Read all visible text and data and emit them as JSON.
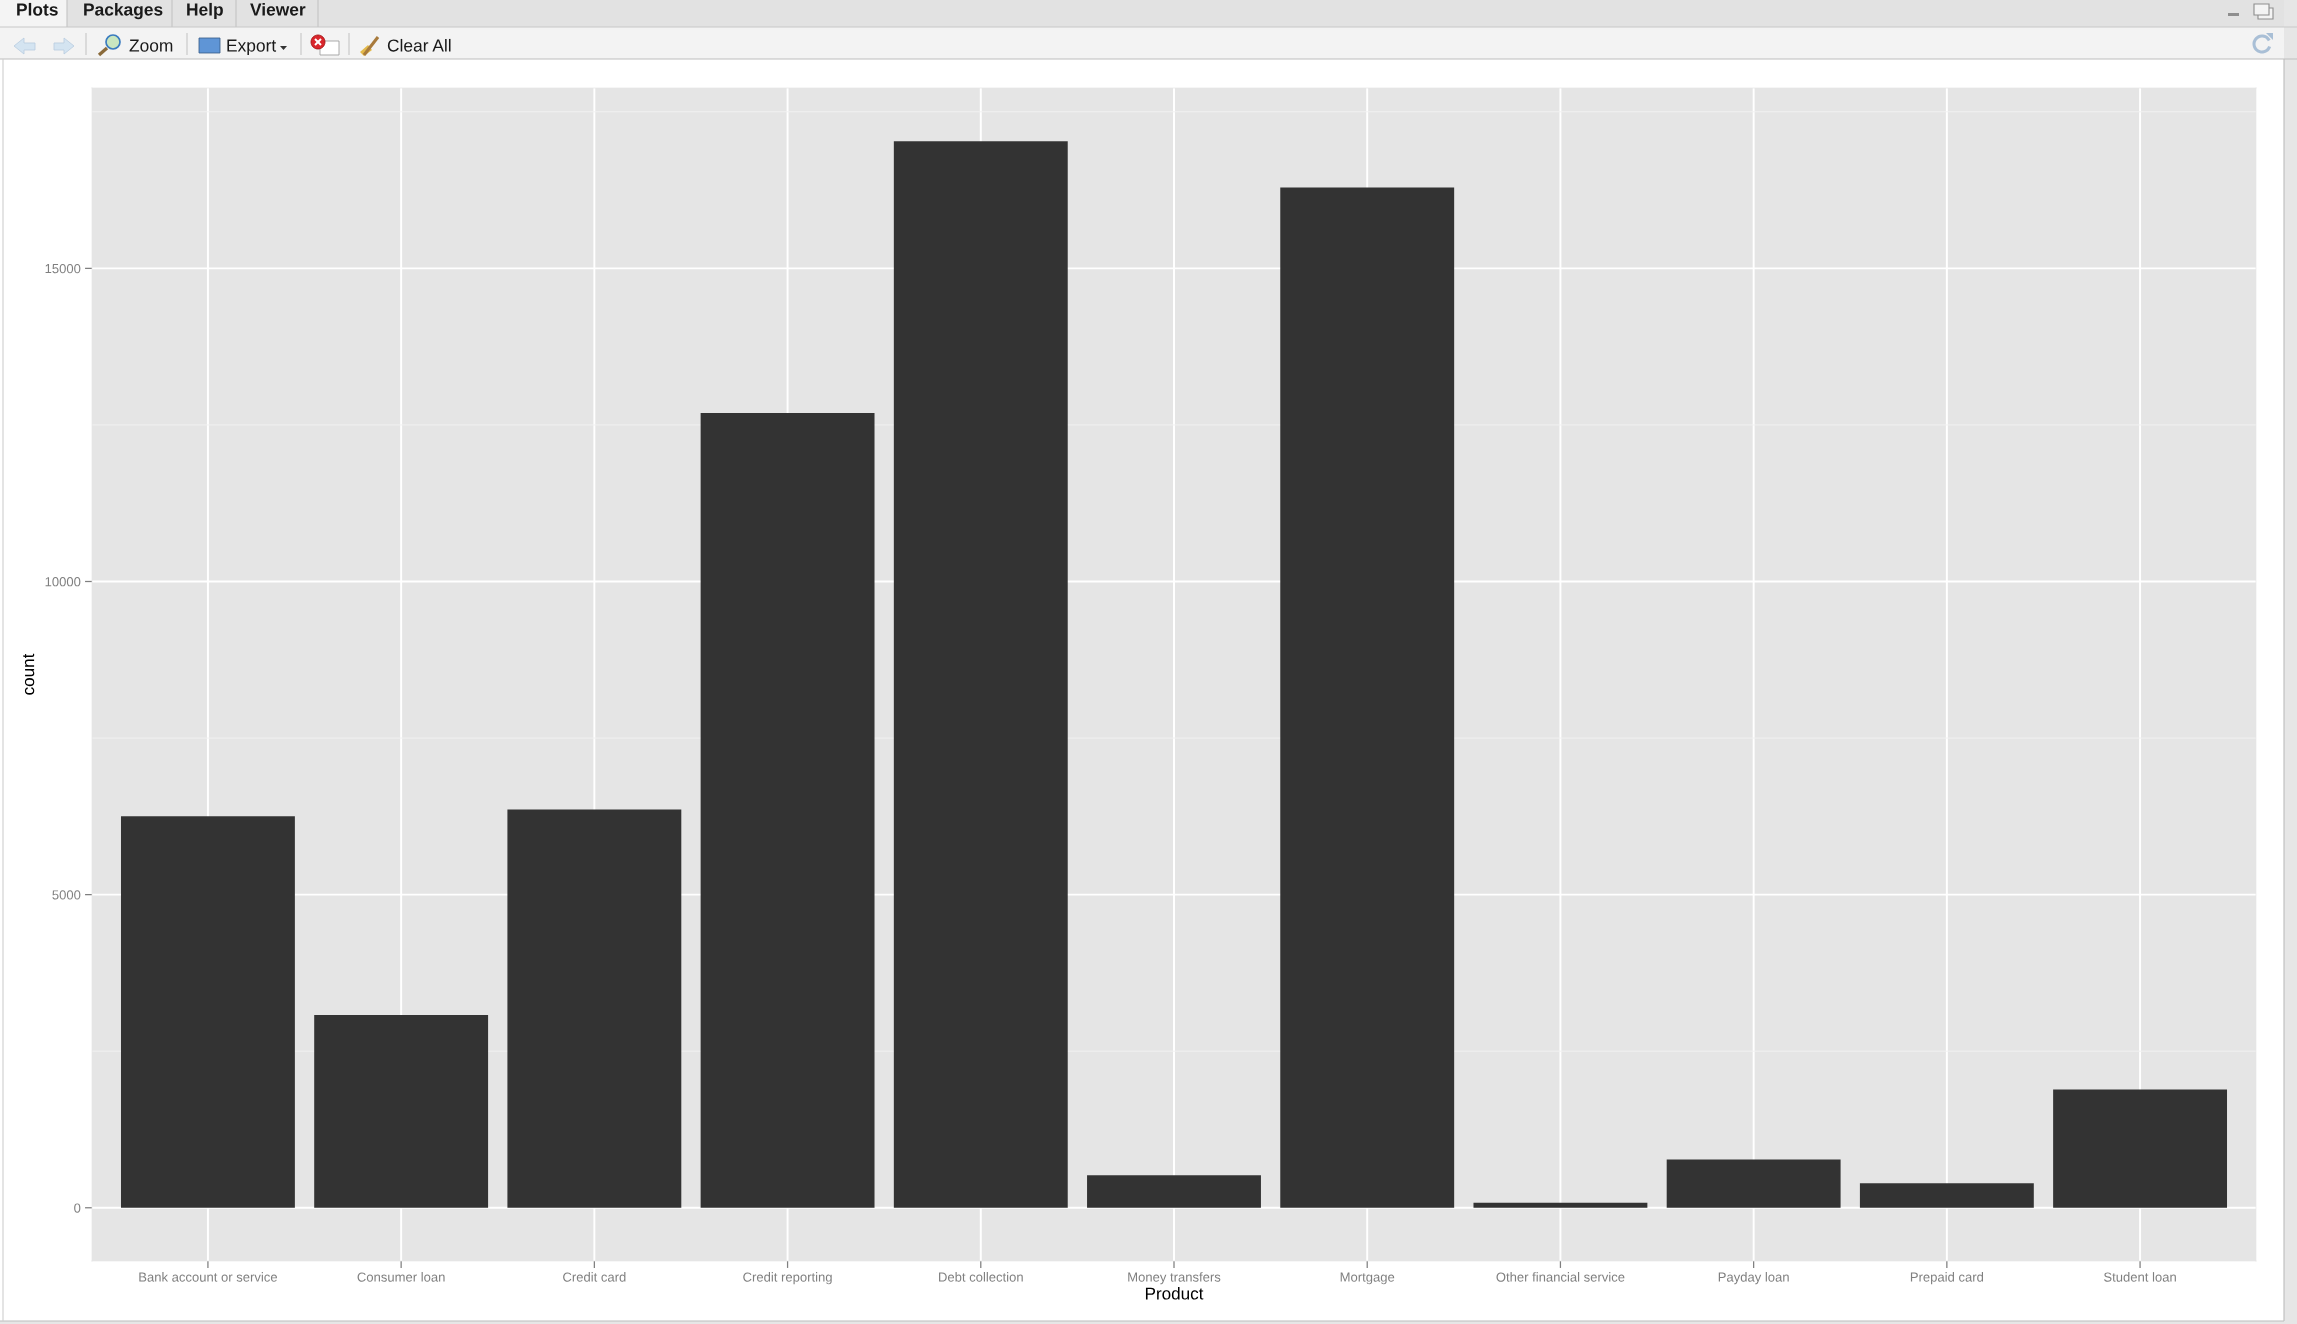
{
  "chart_data": {
    "type": "bar",
    "xlabel": "Product",
    "ylabel": "count",
    "categories": [
      "Bank account or service",
      "Consumer loan",
      "Credit card",
      "Credit reporting",
      "Debt collection",
      "Money transfers",
      "Mortgage",
      "Other financial service",
      "Payday loan",
      "Prepaid card",
      "Student loan"
    ],
    "values": [
      6250,
      3080,
      6360,
      12690,
      17030,
      520,
      16290,
      80,
      770,
      390,
      1890
    ],
    "color": "#333333",
    "ylim": [
      -850,
      17880
    ],
    "yticks": [
      0,
      5000,
      10000,
      15000
    ],
    "grid": true,
    "annotations": [
      "Plots",
      "Packages",
      "Help",
      "Viewer",
      "Zoom",
      "Export",
      "Clear All"
    ]
  }
}
